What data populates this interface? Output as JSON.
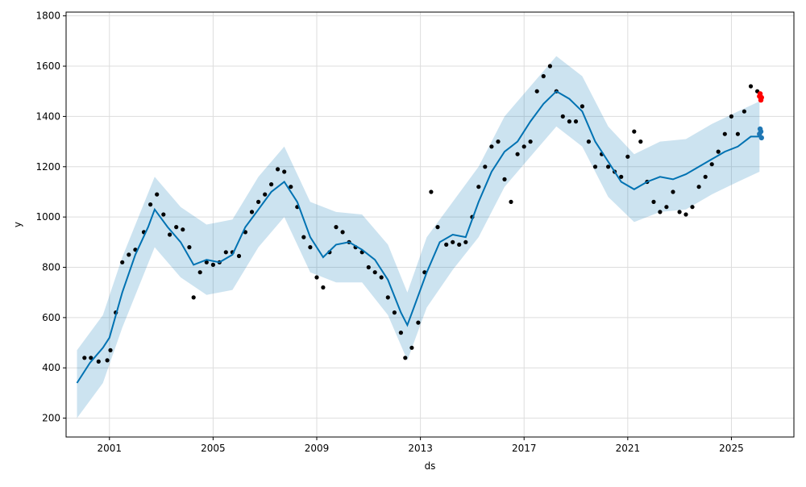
{
  "chart_data": {
    "type": "scatter",
    "title": "",
    "xlabel": "ds",
    "ylabel": "y",
    "xlim": [
      "1999-05-01",
      "2027-06-01"
    ],
    "ylim": [
      125,
      1815
    ],
    "grid": true,
    "x_ticks": [
      {
        "date": "2001-01-01",
        "label": "2001"
      },
      {
        "date": "2005-01-01",
        "label": "2005"
      },
      {
        "date": "2009-01-01",
        "label": "2009"
      },
      {
        "date": "2013-01-01",
        "label": "2013"
      },
      {
        "date": "2017-01-01",
        "label": "2017"
      },
      {
        "date": "2021-01-01",
        "label": "2021"
      },
      {
        "date": "2025-01-01",
        "label": "2025"
      }
    ],
    "y_ticks": [
      200,
      400,
      600,
      800,
      1000,
      1200,
      1400,
      1600,
      1800
    ],
    "series": [
      {
        "role": "observed",
        "color": "#000000",
        "points": [
          [
            "2000-01-15",
            440
          ],
          [
            "2000-04-15",
            440
          ],
          [
            "2000-08-01",
            425
          ],
          [
            "2000-12-01",
            430
          ],
          [
            "2001-01-15",
            470
          ],
          [
            "2001-04-01",
            620
          ],
          [
            "2001-07-01",
            820
          ],
          [
            "2001-10-01",
            850
          ],
          [
            "2002-01-01",
            870
          ],
          [
            "2002-05-01",
            940
          ],
          [
            "2002-08-01",
            1050
          ],
          [
            "2002-11-01",
            1090
          ],
          [
            "2003-02-01",
            1010
          ],
          [
            "2003-05-01",
            930
          ],
          [
            "2003-08-01",
            960
          ],
          [
            "2003-11-01",
            950
          ],
          [
            "2004-02-01",
            880
          ],
          [
            "2004-04-01",
            680
          ],
          [
            "2004-07-01",
            780
          ],
          [
            "2004-10-01",
            820
          ],
          [
            "2005-01-01",
            810
          ],
          [
            "2005-04-01",
            820
          ],
          [
            "2005-07-01",
            860
          ],
          [
            "2005-10-01",
            860
          ],
          [
            "2006-01-01",
            845
          ],
          [
            "2006-04-01",
            940
          ],
          [
            "2006-07-01",
            1020
          ],
          [
            "2006-10-01",
            1060
          ],
          [
            "2007-01-01",
            1090
          ],
          [
            "2007-04-01",
            1130
          ],
          [
            "2007-07-01",
            1190
          ],
          [
            "2007-10-01",
            1180
          ],
          [
            "2008-01-01",
            1120
          ],
          [
            "2008-04-01",
            1040
          ],
          [
            "2008-07-01",
            920
          ],
          [
            "2008-10-01",
            880
          ],
          [
            "2009-01-01",
            760
          ],
          [
            "2009-04-01",
            720
          ],
          [
            "2009-07-01",
            860
          ],
          [
            "2009-10-01",
            960
          ],
          [
            "2010-01-01",
            940
          ],
          [
            "2010-04-01",
            900
          ],
          [
            "2010-07-01",
            880
          ],
          [
            "2010-10-01",
            860
          ],
          [
            "2011-01-01",
            800
          ],
          [
            "2011-04-01",
            780
          ],
          [
            "2011-07-01",
            760
          ],
          [
            "2011-10-01",
            680
          ],
          [
            "2012-01-01",
            620
          ],
          [
            "2012-04-01",
            540
          ],
          [
            "2012-06-01",
            440
          ],
          [
            "2012-09-01",
            480
          ],
          [
            "2012-12-01",
            580
          ],
          [
            "2013-03-01",
            780
          ],
          [
            "2013-06-01",
            1100
          ],
          [
            "2013-09-01",
            960
          ],
          [
            "2014-01-01",
            890
          ],
          [
            "2014-04-01",
            900
          ],
          [
            "2014-07-01",
            890
          ],
          [
            "2014-10-01",
            900
          ],
          [
            "2015-01-01",
            1000
          ],
          [
            "2015-04-01",
            1120
          ],
          [
            "2015-07-01",
            1200
          ],
          [
            "2015-10-01",
            1280
          ],
          [
            "2016-01-01",
            1300
          ],
          [
            "2016-04-01",
            1150
          ],
          [
            "2016-07-01",
            1060
          ],
          [
            "2016-10-01",
            1250
          ],
          [
            "2017-01-01",
            1280
          ],
          [
            "2017-04-01",
            1300
          ],
          [
            "2017-07-01",
            1500
          ],
          [
            "2017-10-01",
            1560
          ],
          [
            "2018-01-01",
            1600
          ],
          [
            "2018-04-01",
            1500
          ],
          [
            "2018-07-01",
            1400
          ],
          [
            "2018-10-01",
            1380
          ],
          [
            "2019-01-01",
            1380
          ],
          [
            "2019-04-01",
            1440
          ],
          [
            "2019-07-01",
            1300
          ],
          [
            "2019-10-01",
            1200
          ],
          [
            "2020-01-01",
            1250
          ],
          [
            "2020-04-01",
            1200
          ],
          [
            "2020-07-01",
            1180
          ],
          [
            "2020-10-01",
            1160
          ],
          [
            "2021-01-01",
            1240
          ],
          [
            "2021-04-01",
            1340
          ],
          [
            "2021-07-01",
            1300
          ],
          [
            "2021-10-01",
            1140
          ],
          [
            "2022-01-01",
            1060
          ],
          [
            "2022-04-01",
            1020
          ],
          [
            "2022-07-01",
            1040
          ],
          [
            "2022-10-01",
            1100
          ],
          [
            "2023-01-01",
            1020
          ],
          [
            "2023-04-01",
            1010
          ],
          [
            "2023-07-01",
            1040
          ],
          [
            "2023-10-01",
            1120
          ],
          [
            "2024-01-01",
            1160
          ],
          [
            "2024-04-01",
            1210
          ],
          [
            "2024-07-01",
            1260
          ],
          [
            "2024-10-01",
            1330
          ],
          [
            "2025-01-01",
            1400
          ],
          [
            "2025-04-01",
            1330
          ],
          [
            "2025-07-01",
            1420
          ],
          [
            "2025-10-01",
            1520
          ],
          [
            "2026-01-01",
            1500
          ]
        ]
      },
      {
        "role": "forecast",
        "color": "#0072B2",
        "points": [
          [
            "1999-10-01",
            340
          ],
          [
            "2000-04-01",
            420
          ],
          [
            "2000-10-01",
            480
          ],
          [
            "2001-01-01",
            520
          ],
          [
            "2001-07-01",
            700
          ],
          [
            "2002-01-01",
            850
          ],
          [
            "2002-07-01",
            960
          ],
          [
            "2002-10-01",
            1030
          ],
          [
            "2003-04-01",
            960
          ],
          [
            "2003-10-01",
            900
          ],
          [
            "2004-04-01",
            810
          ],
          [
            "2004-10-01",
            830
          ],
          [
            "2005-04-01",
            820
          ],
          [
            "2005-10-01",
            850
          ],
          [
            "2006-04-01",
            960
          ],
          [
            "2006-10-01",
            1030
          ],
          [
            "2007-04-01",
            1100
          ],
          [
            "2007-10-01",
            1140
          ],
          [
            "2008-04-01",
            1060
          ],
          [
            "2008-10-01",
            920
          ],
          [
            "2009-04-01",
            840
          ],
          [
            "2009-10-01",
            890
          ],
          [
            "2010-04-01",
            900
          ],
          [
            "2010-10-01",
            870
          ],
          [
            "2011-04-01",
            830
          ],
          [
            "2011-10-01",
            750
          ],
          [
            "2012-04-01",
            620
          ],
          [
            "2012-07-01",
            570
          ],
          [
            "2012-10-01",
            640
          ],
          [
            "2013-04-01",
            780
          ],
          [
            "2013-10-01",
            900
          ],
          [
            "2014-04-01",
            930
          ],
          [
            "2014-10-01",
            920
          ],
          [
            "2015-04-01",
            1060
          ],
          [
            "2015-10-01",
            1180
          ],
          [
            "2016-04-01",
            1260
          ],
          [
            "2016-10-01",
            1300
          ],
          [
            "2017-04-01",
            1380
          ],
          [
            "2017-10-01",
            1450
          ],
          [
            "2018-04-01",
            1500
          ],
          [
            "2018-10-01",
            1470
          ],
          [
            "2019-04-01",
            1420
          ],
          [
            "2019-10-01",
            1300
          ],
          [
            "2020-04-01",
            1220
          ],
          [
            "2020-10-01",
            1140
          ],
          [
            "2021-04-01",
            1110
          ],
          [
            "2021-10-01",
            1140
          ],
          [
            "2022-04-01",
            1160
          ],
          [
            "2022-10-01",
            1150
          ],
          [
            "2023-04-01",
            1170
          ],
          [
            "2023-10-01",
            1200
          ],
          [
            "2024-04-01",
            1230
          ],
          [
            "2024-10-01",
            1260
          ],
          [
            "2025-04-01",
            1280
          ],
          [
            "2025-10-01",
            1320
          ],
          [
            "2026-02-01",
            1320
          ]
        ]
      },
      {
        "role": "uncertainty-interval",
        "color": "#0072B2",
        "lower": [
          [
            "1999-10-01",
            200
          ],
          [
            "2000-10-01",
            340
          ],
          [
            "2001-07-01",
            560
          ],
          [
            "2002-10-01",
            880
          ],
          [
            "2003-10-01",
            760
          ],
          [
            "2004-10-01",
            690
          ],
          [
            "2005-10-01",
            710
          ],
          [
            "2006-10-01",
            880
          ],
          [
            "2007-10-01",
            1000
          ],
          [
            "2008-10-01",
            780
          ],
          [
            "2009-10-01",
            740
          ],
          [
            "2010-10-01",
            740
          ],
          [
            "2011-10-01",
            610
          ],
          [
            "2012-07-01",
            430
          ],
          [
            "2013-04-01",
            640
          ],
          [
            "2014-04-01",
            790
          ],
          [
            "2015-04-01",
            920
          ],
          [
            "2016-04-01",
            1120
          ],
          [
            "2017-04-01",
            1240
          ],
          [
            "2018-04-01",
            1360
          ],
          [
            "2019-04-01",
            1280
          ],
          [
            "2020-04-01",
            1080
          ],
          [
            "2021-04-01",
            980
          ],
          [
            "2022-04-01",
            1020
          ],
          [
            "2023-04-01",
            1030
          ],
          [
            "2024-04-01",
            1090
          ],
          [
            "2025-04-01",
            1140
          ],
          [
            "2026-02-01",
            1180
          ]
        ],
        "upper": [
          [
            "1999-10-01",
            470
          ],
          [
            "2000-10-01",
            610
          ],
          [
            "2001-07-01",
            840
          ],
          [
            "2002-10-01",
            1160
          ],
          [
            "2003-10-01",
            1040
          ],
          [
            "2004-10-01",
            970
          ],
          [
            "2005-10-01",
            990
          ],
          [
            "2006-10-01",
            1160
          ],
          [
            "2007-10-01",
            1280
          ],
          [
            "2008-10-01",
            1060
          ],
          [
            "2009-10-01",
            1020
          ],
          [
            "2010-10-01",
            1010
          ],
          [
            "2011-10-01",
            890
          ],
          [
            "2012-07-01",
            700
          ],
          [
            "2013-04-01",
            920
          ],
          [
            "2014-04-01",
            1060
          ],
          [
            "2015-04-01",
            1200
          ],
          [
            "2016-04-01",
            1400
          ],
          [
            "2017-04-01",
            1520
          ],
          [
            "2018-04-01",
            1640
          ],
          [
            "2019-04-01",
            1560
          ],
          [
            "2020-04-01",
            1360
          ],
          [
            "2021-04-01",
            1250
          ],
          [
            "2022-04-01",
            1300
          ],
          [
            "2023-04-01",
            1310
          ],
          [
            "2024-04-01",
            1370
          ],
          [
            "2025-04-01",
            1420
          ],
          [
            "2026-02-01",
            1460
          ]
        ]
      },
      {
        "role": "highlighted-recent",
        "color": "#FF0000",
        "points": [
          [
            "2026-02-01",
            1480
          ],
          [
            "2026-02-10",
            1490
          ],
          [
            "2026-02-20",
            1465
          ],
          [
            "2026-03-01",
            1475
          ]
        ]
      },
      {
        "role": "recent-forecast",
        "color": "#1F77B4",
        "points": [
          [
            "2026-02-01",
            1330
          ],
          [
            "2026-02-10",
            1350
          ],
          [
            "2026-02-20",
            1340
          ],
          [
            "2026-03-01",
            1315
          ]
        ]
      }
    ]
  }
}
